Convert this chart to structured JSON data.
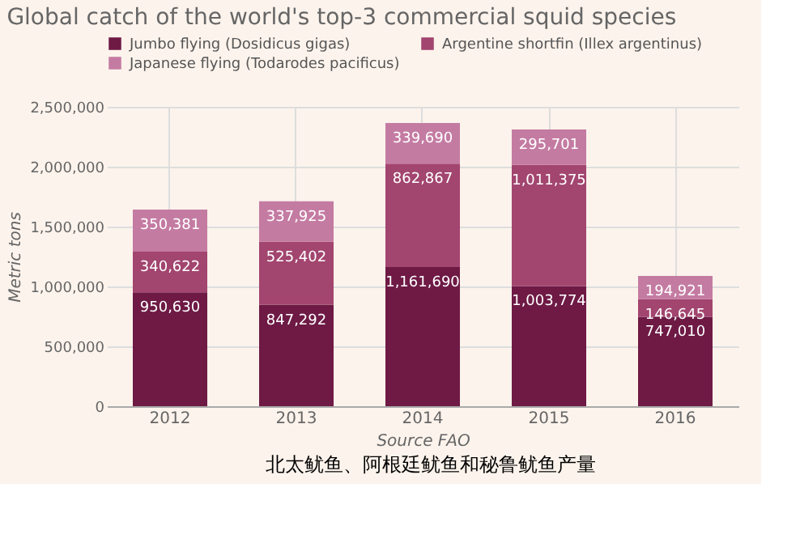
{
  "chart_data": {
    "type": "bar",
    "title": "Global catch of the world's top-3 commercial squid species",
    "xlabel": "Source FAO",
    "ylabel": "Metric tons",
    "categories": [
      "2012",
      "2013",
      "2014",
      "2015",
      "2016"
    ],
    "stacked": true,
    "grid": true,
    "legend": "top",
    "ylim": [
      0,
      2500000
    ],
    "yticks": [
      0,
      {
        "value": 500000,
        "label": "500,000"
      },
      {
        "value": 1000000,
        "label": "1,000,000"
      },
      {
        "value": 1500000,
        "label": "1,500,000"
      },
      {
        "value": 2000000,
        "label": "2,000,000"
      },
      {
        "value": 2500000,
        "label": "2,500,000"
      }
    ],
    "series": [
      {
        "name": "Jumbo flying (Dosidicus gigas)",
        "color": "#6e1a45",
        "values": [
          950630,
          847292,
          1161690,
          1003774,
          747010
        ],
        "value_labels": [
          "950,630",
          "847,292",
          "1,161,690",
          "1,003,774",
          "747,010"
        ]
      },
      {
        "name": "Argentine shortfin (Illex argentinus)",
        "color": "#a2456f",
        "values": [
          340622,
          525402,
          862867,
          1011375,
          146645
        ],
        "value_labels": [
          "340,622",
          "525,402",
          "862,867",
          "1,011,375",
          "146,645"
        ]
      },
      {
        "name": "Japanese flying (Todarodes pacificus)",
        "color": "#c47ba2",
        "values": [
          350381,
          337925,
          339690,
          295701,
          194921
        ],
        "value_labels": [
          "350,381",
          "337,925",
          "339,690",
          "295,701",
          "194,921"
        ]
      }
    ],
    "annotations": [
      "北太鱿鱼、阿根廷鱿鱼和秘鲁鱿鱼产量"
    ]
  }
}
